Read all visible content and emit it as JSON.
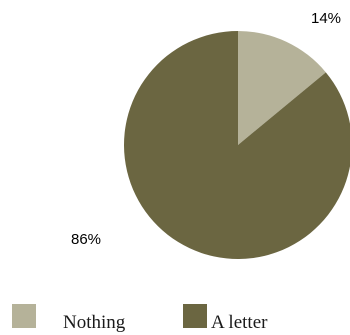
{
  "chart_data": {
    "type": "pie",
    "slices": [
      {
        "label": "Nothing",
        "value": 14,
        "data_label": "14%",
        "color": "#b5b299"
      },
      {
        "label": "A letter",
        "value": 86,
        "data_label": "86%",
        "color": "#6b6641"
      }
    ],
    "legend_position": "bottom-left"
  }
}
